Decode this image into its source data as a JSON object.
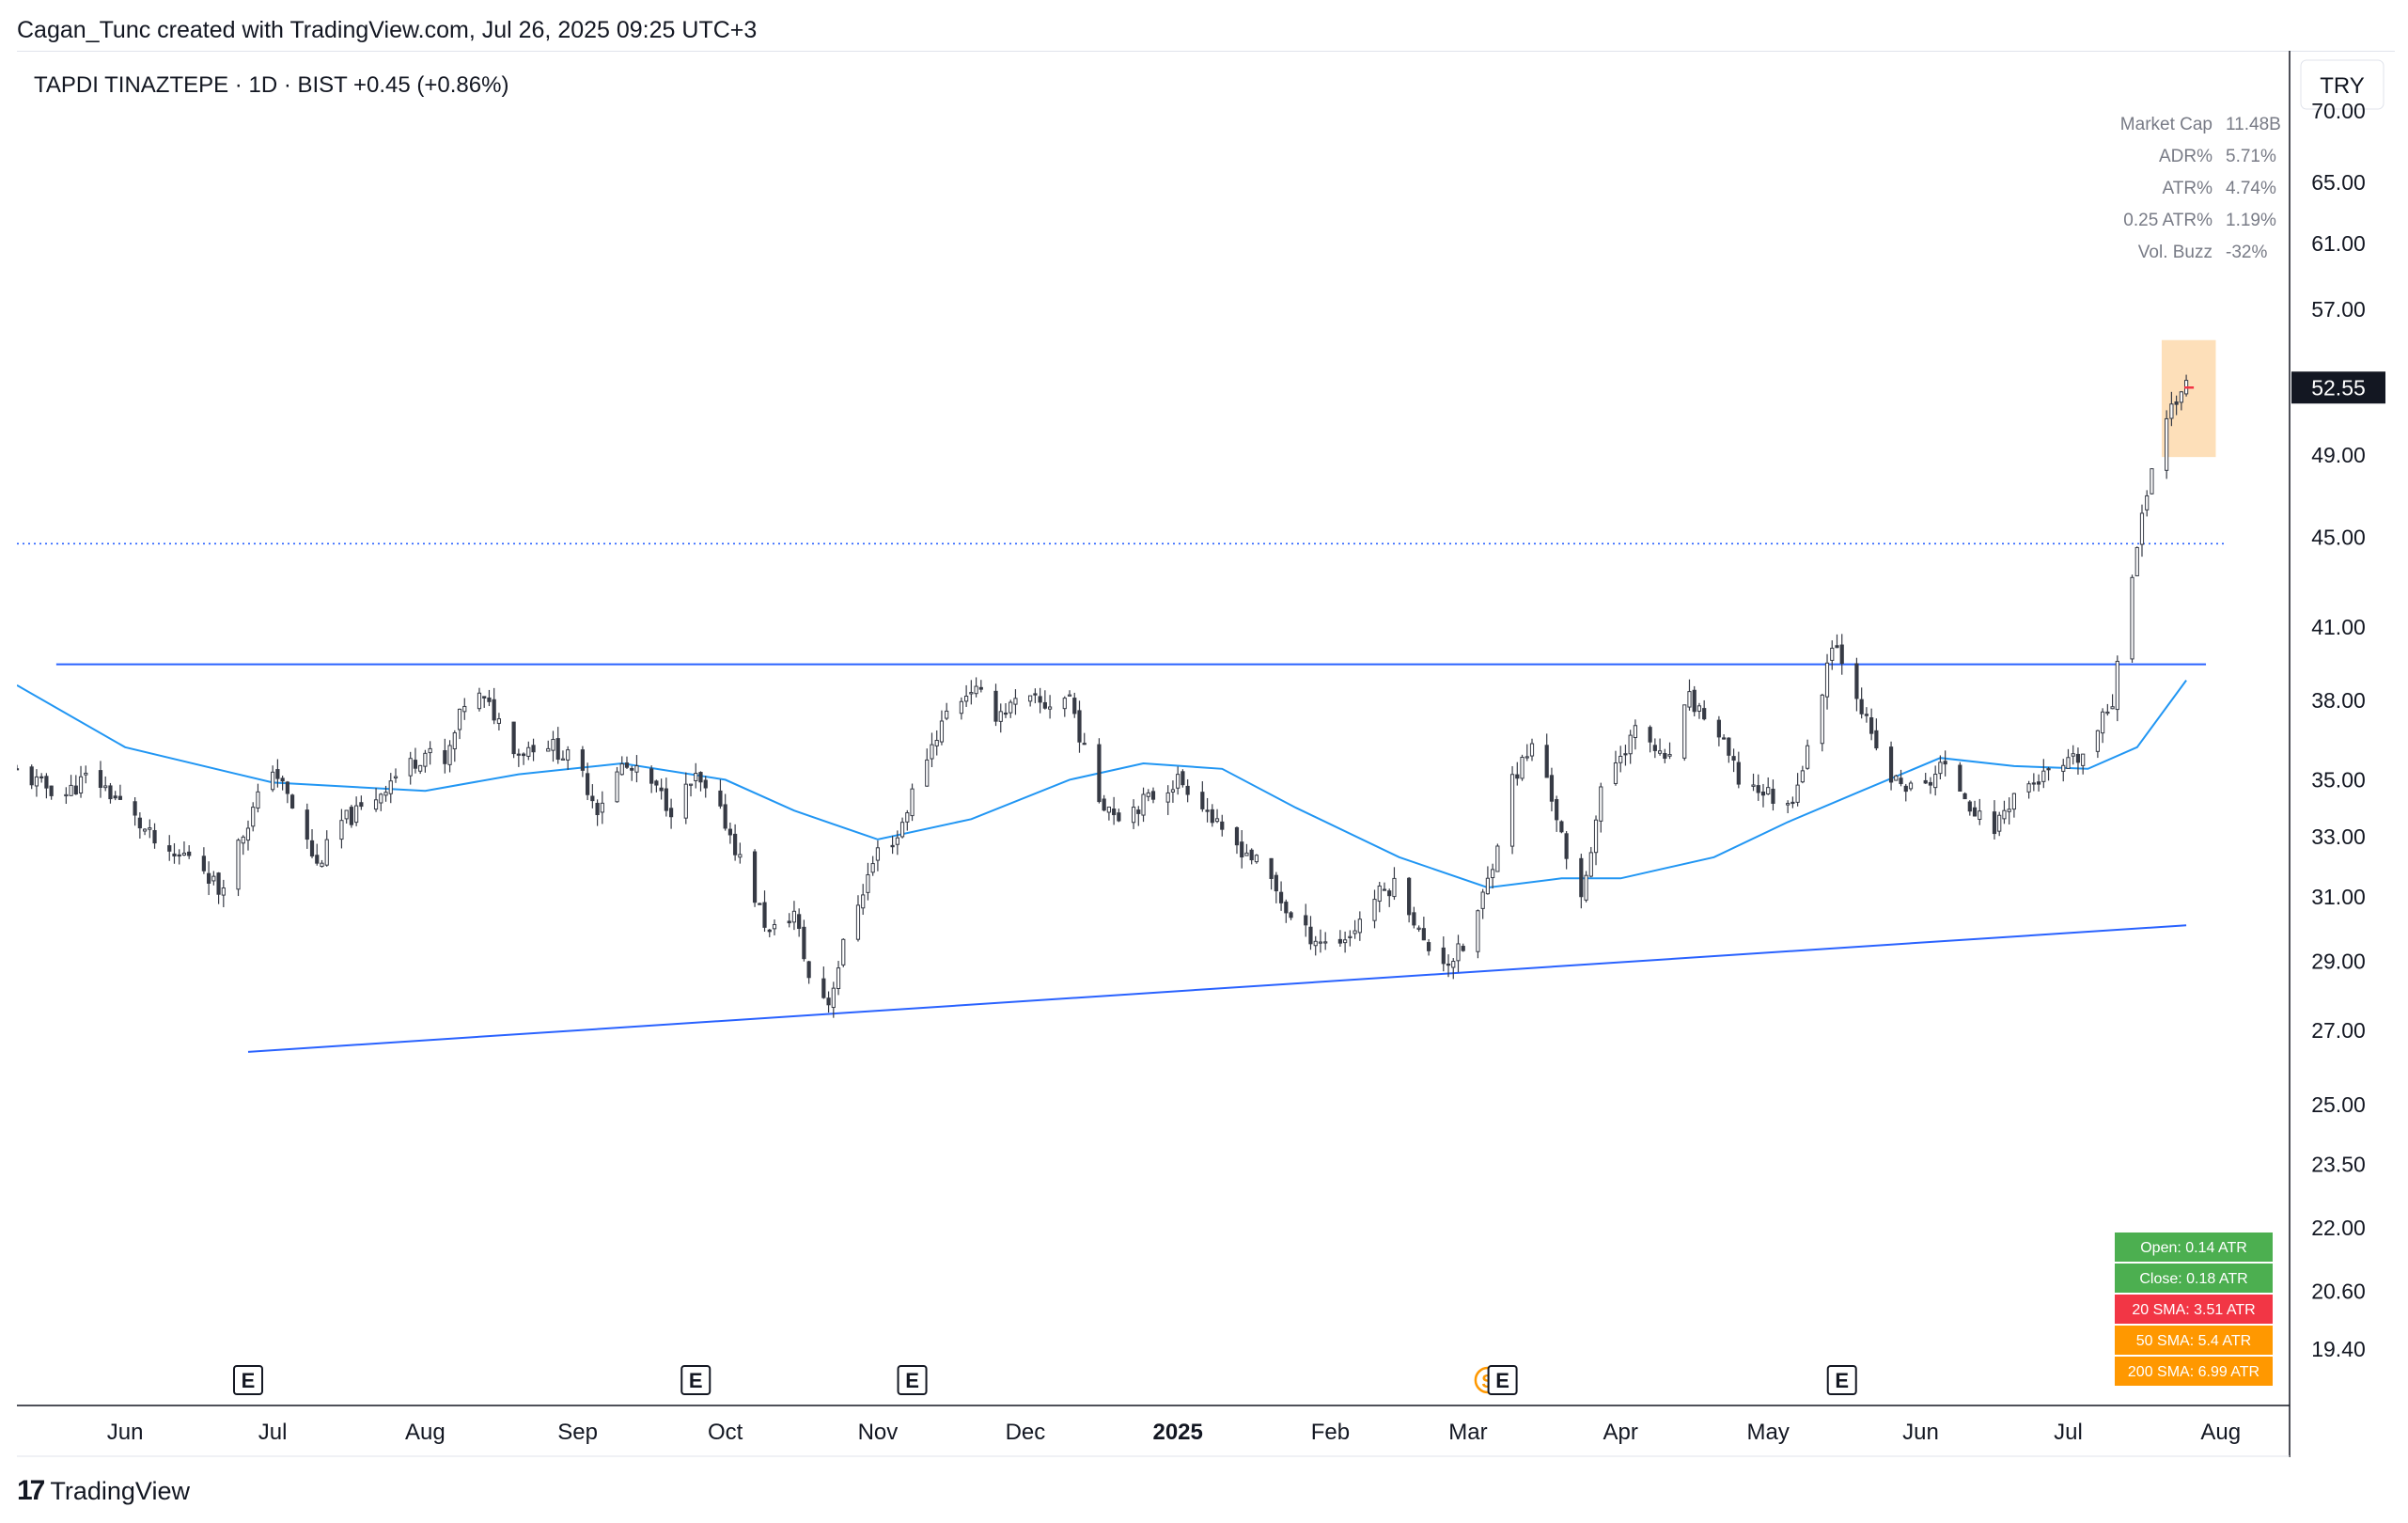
{
  "header": {
    "caption": "Cagan_Tunc created with TradingView.com, Jul 26, 2025 09:25 UTC+3"
  },
  "symbol": {
    "title": "TAPDI TINAZTEPE · 1D · BIST",
    "change": "+0.45 (+0.86%)"
  },
  "currency": "TRY",
  "last_price_label": "52.55",
  "stats": [
    {
      "label": "Market Cap",
      "value": "11.48B"
    },
    {
      "label": "ADR%",
      "value": "5.71%"
    },
    {
      "label": "ATR%",
      "value": "4.74%"
    },
    {
      "label": "0.25 ATR%",
      "value": "1.19%"
    },
    {
      "label": "Vol. Buzz",
      "value": "-32%"
    }
  ],
  "atr_table": [
    {
      "text": "Open: 0.14 ATR",
      "color": "#4caf50"
    },
    {
      "text": "Close: 0.18 ATR",
      "color": "#4caf50"
    },
    {
      "text": "20 SMA: 3.51 ATR",
      "color": "#f23645"
    },
    {
      "text": "50 SMA: 5.4 ATR",
      "color": "#ff9800"
    },
    {
      "text": "200 SMA: 6.99 ATR",
      "color": "#ff9800"
    }
  ],
  "event_markers": [
    {
      "label": "E",
      "date": "2024-06-26"
    },
    {
      "label": "E",
      "date": "2024-09-25"
    },
    {
      "label": "E",
      "date": "2024-11-08"
    },
    {
      "label": "E",
      "date": "2025-03-08"
    },
    {
      "label": "E",
      "date": "2025-05-16"
    }
  ],
  "split_marker": {
    "label": "S",
    "date": "2025-03-05"
  },
  "footer": {
    "brand": "TradingView",
    "logo_mark": "17"
  },
  "colors": {
    "up": "#ffffff",
    "down": "#363a45",
    "trendline": "#2962ff",
    "sma": "#2196f3",
    "highlight": "#fbc98a"
  },
  "chart_data": {
    "type": "candlestick",
    "title": "TAPDI TINAZTEPE · 1D · BIST",
    "y_scale": "log",
    "ylim": [
      18.3,
      74.5
    ],
    "xlim": [
      "2024-05-10",
      "2025-08-15"
    ],
    "y_ticks": [
      "70.00",
      "65.00",
      "61.00",
      "57.00",
      "52.55",
      "49.00",
      "45.00",
      "41.00",
      "38.00",
      "35.00",
      "33.00",
      "31.00",
      "29.00",
      "27.00",
      "25.00",
      "23.50",
      "22.00",
      "20.60",
      "19.40"
    ],
    "x_ticks": [
      {
        "label": "Jun",
        "date": "2024-06-01"
      },
      {
        "label": "Jul",
        "date": "2024-07-01"
      },
      {
        "label": "Aug",
        "date": "2024-08-01"
      },
      {
        "label": "Sep",
        "date": "2024-09-01"
      },
      {
        "label": "Oct",
        "date": "2024-10-01"
      },
      {
        "label": "Nov",
        "date": "2024-11-01"
      },
      {
        "label": "Dec",
        "date": "2024-12-01"
      },
      {
        "label": "2025",
        "date": "2025-01-01",
        "bold": true
      },
      {
        "label": "Feb",
        "date": "2025-02-01"
      },
      {
        "label": "Mar",
        "date": "2025-03-01"
      },
      {
        "label": "Apr",
        "date": "2025-04-01"
      },
      {
        "label": "May",
        "date": "2025-05-01"
      },
      {
        "label": "Jun",
        "date": "2025-06-01"
      },
      {
        "label": "Jul",
        "date": "2025-07-01"
      },
      {
        "label": "Aug",
        "date": "2025-08-01"
      }
    ],
    "close_series": [
      [
        "2024-05-10",
        35.3
      ],
      [
        "2024-05-15",
        34.8
      ],
      [
        "2024-05-20",
        34.5
      ],
      [
        "2024-05-25",
        35.2
      ],
      [
        "2024-06-01",
        34.0
      ],
      [
        "2024-06-05",
        33.2
      ],
      [
        "2024-06-10",
        32.2
      ],
      [
        "2024-06-15",
        32.5
      ],
      [
        "2024-06-20",
        31.2
      ],
      [
        "2024-06-26",
        33.5
      ],
      [
        "2024-07-01",
        35.5
      ],
      [
        "2024-07-05",
        34.0
      ],
      [
        "2024-07-10",
        32.0
      ],
      [
        "2024-07-15",
        33.5
      ],
      [
        "2024-07-20",
        34.0
      ],
      [
        "2024-07-25",
        35.0
      ],
      [
        "2024-08-01",
        36.0
      ],
      [
        "2024-08-05",
        35.5
      ],
      [
        "2024-08-10",
        38.5
      ],
      [
        "2024-08-15",
        37.5
      ],
      [
        "2024-08-20",
        36.0
      ],
      [
        "2024-08-25",
        36.5
      ],
      [
        "2024-09-01",
        35.5
      ],
      [
        "2024-09-05",
        34.0
      ],
      [
        "2024-09-10",
        35.5
      ],
      [
        "2024-09-15",
        35.0
      ],
      [
        "2024-09-20",
        34.0
      ],
      [
        "2024-09-25",
        35.0
      ],
      [
        "2024-10-01",
        33.5
      ],
      [
        "2024-10-05",
        31.8
      ],
      [
        "2024-10-10",
        29.8
      ],
      [
        "2024-10-15",
        30.5
      ],
      [
        "2024-10-18",
        28.5
      ],
      [
        "2024-10-22",
        27.8
      ],
      [
        "2024-10-26",
        30.0
      ],
      [
        "2024-11-01",
        32.5
      ],
      [
        "2024-11-05",
        33.0
      ],
      [
        "2024-11-10",
        35.5
      ],
      [
        "2024-11-15",
        37.5
      ],
      [
        "2024-11-20",
        38.5
      ],
      [
        "2024-11-25",
        37.5
      ],
      [
        "2024-12-01",
        38.0
      ],
      [
        "2024-12-05",
        37.8
      ],
      [
        "2024-12-10",
        38.2
      ],
      [
        "2024-12-15",
        34.5
      ],
      [
        "2024-12-20",
        33.8
      ],
      [
        "2024-12-25",
        34.2
      ],
      [
        "2025-01-01",
        35.0
      ],
      [
        "2025-01-05",
        34.5
      ],
      [
        "2025-01-10",
        33.0
      ],
      [
        "2025-01-15",
        32.5
      ],
      [
        "2025-01-20",
        31.5
      ],
      [
        "2025-01-25",
        30.0
      ],
      [
        "2025-02-01",
        29.5
      ],
      [
        "2025-02-05",
        29.8
      ],
      [
        "2025-02-10",
        31.0
      ],
      [
        "2025-02-15",
        31.5
      ],
      [
        "2025-02-20",
        29.5
      ],
      [
        "2025-02-25",
        29.0
      ],
      [
        "2025-03-01",
        29.5
      ],
      [
        "2025-03-05",
        31.5
      ],
      [
        "2025-03-10",
        35.0
      ],
      [
        "2025-03-15",
        36.5
      ],
      [
        "2025-03-20",
        33.0
      ],
      [
        "2025-03-23",
        30.0
      ],
      [
        "2025-03-28",
        34.5
      ],
      [
        "2025-04-01",
        36.0
      ],
      [
        "2025-04-05",
        37.0
      ],
      [
        "2025-04-10",
        35.5
      ],
      [
        "2025-04-15",
        38.0
      ],
      [
        "2025-04-20",
        37.0
      ],
      [
        "2025-04-25",
        35.0
      ],
      [
        "2025-05-01",
        34.5
      ],
      [
        "2025-05-05",
        34.0
      ],
      [
        "2025-05-10",
        36.5
      ],
      [
        "2025-05-14",
        40.5
      ],
      [
        "2025-05-18",
        39.0
      ],
      [
        "2025-05-22",
        36.5
      ],
      [
        "2025-05-26",
        35.0
      ],
      [
        "2025-06-01",
        34.5
      ],
      [
        "2025-06-05",
        35.5
      ],
      [
        "2025-06-10",
        34.5
      ],
      [
        "2025-06-15",
        33.0
      ],
      [
        "2025-06-20",
        34.5
      ],
      [
        "2025-06-25",
        35.0
      ],
      [
        "2025-07-01",
        35.5
      ],
      [
        "2025-07-05",
        36.0
      ],
      [
        "2025-07-10",
        38.0
      ],
      [
        "2025-07-12",
        41.5
      ],
      [
        "2025-07-15",
        44.5
      ],
      [
        "2025-07-18",
        48.5
      ],
      [
        "2025-07-21",
        51.0
      ],
      [
        "2025-07-23",
        52.0
      ],
      [
        "2025-07-25",
        52.55
      ]
    ],
    "horizontal_lines": [
      {
        "name": "resistance",
        "value": 39.45,
        "style": "solid"
      },
      {
        "name": "breakout-level",
        "value": 44.7,
        "style": "dotted"
      }
    ],
    "trendlines": [
      {
        "name": "rising-support",
        "start": [
          "2024-06-26",
          26.4
        ],
        "end": [
          "2025-07-25",
          30.1
        ]
      }
    ],
    "sma_50": [
      [
        "2024-05-10",
        38.6
      ],
      [
        "2024-06-01",
        36.2
      ],
      [
        "2024-07-01",
        34.9
      ],
      [
        "2024-08-01",
        34.6
      ],
      [
        "2024-08-20",
        35.2
      ],
      [
        "2024-09-10",
        35.6
      ],
      [
        "2024-10-01",
        35.0
      ],
      [
        "2024-10-15",
        33.9
      ],
      [
        "2024-11-01",
        32.9
      ],
      [
        "2024-11-20",
        33.6
      ],
      [
        "2024-12-10",
        35.0
      ],
      [
        "2024-12-25",
        35.6
      ],
      [
        "2025-01-10",
        35.4
      ],
      [
        "2025-01-25",
        34.0
      ],
      [
        "2025-02-15",
        32.3
      ],
      [
        "2025-03-05",
        31.3
      ],
      [
        "2025-03-20",
        31.6
      ],
      [
        "2025-04-01",
        31.6
      ],
      [
        "2025-04-20",
        32.3
      ],
      [
        "2025-05-05",
        33.5
      ],
      [
        "2025-05-20",
        34.6
      ],
      [
        "2025-06-05",
        35.8
      ],
      [
        "2025-06-20",
        35.5
      ],
      [
        "2025-07-05",
        35.4
      ],
      [
        "2025-07-15",
        36.2
      ],
      [
        "2025-07-25",
        38.8
      ]
    ],
    "highlight_box": {
      "start": "2025-07-20",
      "end": "2025-07-31",
      "low": 48.9,
      "high": 55.2
    },
    "last_close_marker": 52.55
  }
}
